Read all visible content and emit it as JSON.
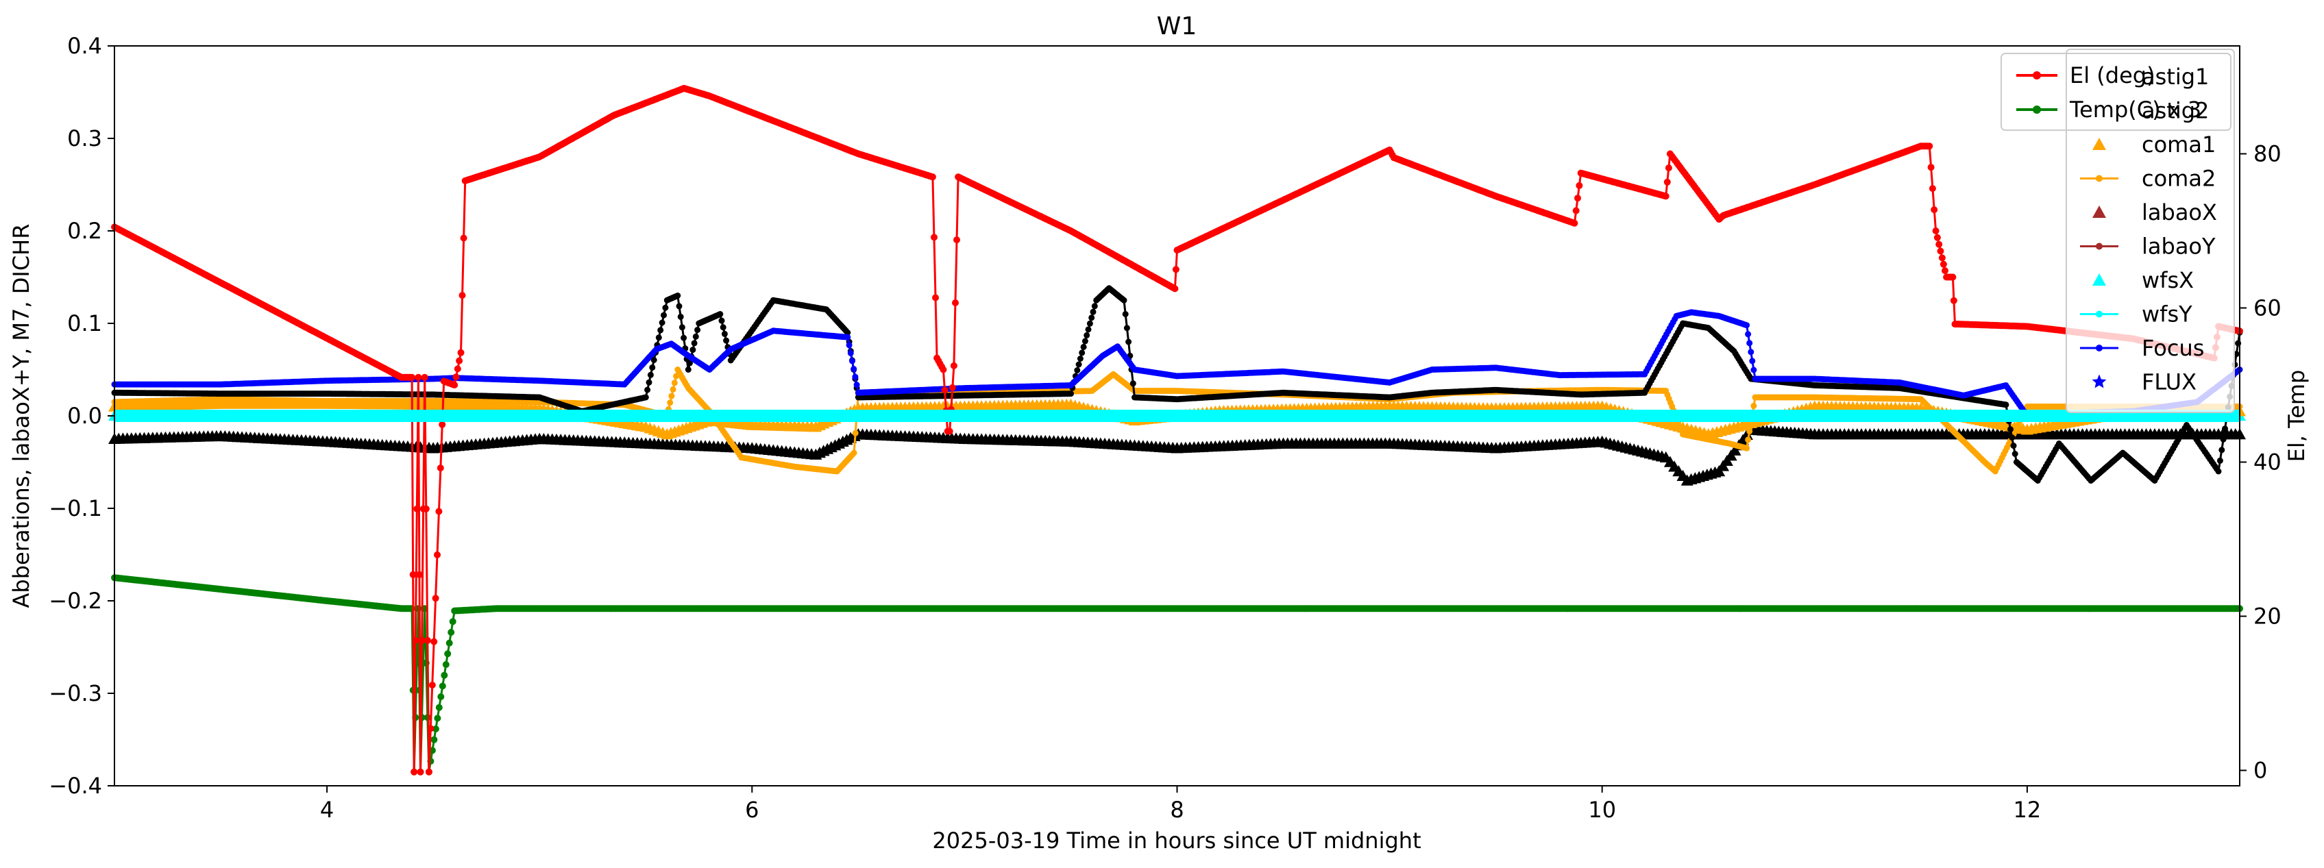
{
  "chart_data": {
    "type": "line",
    "title": "W1",
    "xlabel": "2025-03-19  Time in hours since UT midnight",
    "ylabel_left": "Abberations, labaoX+Y, M7, DICHR",
    "ylabel_right": "El, Temp",
    "xlim": [
      3.0,
      13.0
    ],
    "ylim_left": [
      -0.4,
      0.4
    ],
    "ylim_right": [
      -2,
      94
    ],
    "xticks": [
      4,
      6,
      8,
      10,
      12
    ],
    "xtick_labels": [
      "4",
      "6",
      "8",
      "10",
      "12"
    ],
    "yticks_left": [
      -0.4,
      -0.3,
      -0.2,
      -0.1,
      0.0,
      0.1,
      0.2,
      0.3,
      0.4
    ],
    "ytick_labels_left": [
      "−0.4",
      "−0.3",
      "−0.2",
      "−0.1",
      "0.0",
      "0.1",
      "0.2",
      "0.3",
      "0.4"
    ],
    "yticks_right": [
      0,
      20,
      40,
      60,
      80
    ],
    "ytick_labels_right": [
      "0",
      "20",
      "40",
      "60",
      "80"
    ],
    "grid": false,
    "legends": [
      {
        "placement": "top-right",
        "entries": [
          {
            "label": "astig1",
            "marker": "none",
            "color": "#000000"
          },
          {
            "label": "astig2",
            "marker": "none",
            "color": "#000000"
          },
          {
            "label": "coma1",
            "marker": "triangle",
            "color": "#ffa500"
          },
          {
            "label": "coma2",
            "marker": "line-dot",
            "color": "#ffa500"
          },
          {
            "label": "labaoX",
            "marker": "triangle",
            "color": "#a52a2a"
          },
          {
            "label": "labaoY",
            "marker": "line-dot",
            "color": "#a52a2a"
          },
          {
            "label": "wfsX",
            "marker": "triangle",
            "color": "#00ffff"
          },
          {
            "label": "wfsY",
            "marker": "line-dot",
            "color": "#00ffff"
          },
          {
            "label": "Focus",
            "marker": "line-dot",
            "color": "#0000ff"
          },
          {
            "label": "FLUX",
            "marker": "star",
            "color": "#0000ff"
          }
        ]
      },
      {
        "placement": "top-right",
        "entries": [
          {
            "label": "El (deg)",
            "marker": "line-dot",
            "color": "#ff0000"
          },
          {
            "label": "Temp(C) x 3",
            "marker": "line-dot",
            "color": "#008000"
          }
        ]
      }
    ],
    "series": [
      {
        "name": "El (deg)",
        "axis": "right",
        "color": "#ff0000",
        "style": "line-dot",
        "x": [
          3.0,
          4.35,
          4.4,
          4.41,
          4.43,
          4.44,
          4.46,
          4.48,
          4.55,
          4.6,
          4.63,
          4.65,
          5.0,
          5.35,
          5.68,
          5.8,
          6.5,
          6.85,
          6.87,
          6.9,
          6.92,
          6.93,
          6.95,
          6.97,
          7.5,
          7.99,
          8.0,
          8.5,
          9.0,
          9.02,
          9.5,
          9.87,
          9.9,
          10.3,
          10.32,
          10.55,
          10.57,
          11.0,
          11.5,
          11.54,
          11.57,
          11.6,
          11.62,
          11.65,
          11.66,
          11.68,
          12.0,
          12.5,
          12.88,
          12.9,
          13.0
        ],
        "y": [
          70.5,
          51.0,
          51.0,
          -0.2,
          51.0,
          -0.2,
          51.0,
          -0.2,
          50.5,
          50.0,
          54.2,
          76.5,
          79.6,
          85.0,
          88.5,
          87.5,
          80.0,
          77.0,
          53.5,
          52.0,
          44.0,
          44.0,
          52.5,
          77.0,
          70.0,
          62.5,
          67.5,
          74.0,
          80.5,
          79.5,
          74.5,
          71.0,
          77.5,
          74.5,
          80.0,
          71.5,
          72.0,
          76.0,
          81.0,
          81.0,
          70.0,
          66.5,
          64.0,
          64.0,
          57.9,
          57.9,
          57.6,
          56.0,
          53.5,
          57.6,
          57.0
        ]
      },
      {
        "name": "Temp(C) x 3",
        "axis": "right",
        "color": "#008000",
        "style": "line-dot",
        "x": [
          3.0,
          3.5,
          4.0,
          4.35,
          4.4,
          4.41,
          4.43,
          4.44,
          4.46,
          4.48,
          4.6,
          4.8,
          5.0,
          6.0,
          8.0,
          10.0,
          12.0,
          13.0
        ],
        "y": [
          25.0,
          23.5,
          22.0,
          21.0,
          21.0,
          -0.2,
          21.0,
          -0.2,
          21.0,
          -0.2,
          20.7,
          21.0,
          21.0,
          21.0,
          21.0,
          21.0,
          21.0,
          21.0
        ]
      },
      {
        "name": "Focus",
        "axis": "left",
        "color": "#0000ff",
        "style": "line-dot",
        "x": [
          3.0,
          3.5,
          4.0,
          4.5,
          4.6,
          5.0,
          5.4,
          5.55,
          5.62,
          5.7,
          5.8,
          5.9,
          6.1,
          6.3,
          6.45,
          6.5,
          7.0,
          7.5,
          7.65,
          7.72,
          7.8,
          8.0,
          8.5,
          9.0,
          9.2,
          9.5,
          9.8,
          10.2,
          10.35,
          10.42,
          10.55,
          10.68,
          10.72,
          11.0,
          11.4,
          11.7,
          11.9,
          12.0,
          12.2,
          12.5,
          12.8,
          13.0
        ],
        "y": [
          0.034,
          0.034,
          0.038,
          0.04,
          0.041,
          0.038,
          0.034,
          0.072,
          0.078,
          0.065,
          0.05,
          0.072,
          0.092,
          0.088,
          0.085,
          0.025,
          0.03,
          0.033,
          0.065,
          0.075,
          0.05,
          0.043,
          0.048,
          0.036,
          0.05,
          0.052,
          0.044,
          0.045,
          0.108,
          0.112,
          0.108,
          0.098,
          0.04,
          0.04,
          0.036,
          0.022,
          0.033,
          0.0,
          0.003,
          0.005,
          0.015,
          0.05
        ]
      },
      {
        "name": "coma2",
        "axis": "left",
        "color": "#ffa500",
        "style": "line-dot",
        "x": [
          3.0,
          3.5,
          4.0,
          4.5,
          5.0,
          5.4,
          5.6,
          5.65,
          5.7,
          5.8,
          5.95,
          6.2,
          6.4,
          6.48,
          6.5,
          7.0,
          7.6,
          7.7,
          7.8,
          8.0,
          8.5,
          9.0,
          9.3,
          9.7,
          10.0,
          10.3,
          10.38,
          10.6,
          10.68,
          10.72,
          11.0,
          11.5,
          11.8,
          11.85,
          12.0,
          12.5,
          13.0
        ],
        "y": [
          0.015,
          0.018,
          0.016,
          0.016,
          0.015,
          0.012,
          0.0,
          0.05,
          0.03,
          0.005,
          -0.045,
          -0.055,
          -0.06,
          -0.04,
          0.024,
          0.024,
          0.027,
          0.045,
          0.027,
          0.027,
          0.023,
          0.018,
          0.025,
          0.027,
          0.028,
          0.027,
          -0.02,
          -0.03,
          -0.035,
          0.02,
          0.02,
          0.018,
          -0.05,
          -0.06,
          0.01,
          0.01,
          0.01
        ]
      },
      {
        "name": "coma1",
        "axis": "left",
        "color": "#ffa500",
        "style": "triangle",
        "x": [
          3.0,
          3.5,
          4.0,
          4.5,
          5.0,
          5.5,
          5.6,
          5.8,
          6.0,
          6.3,
          6.5,
          7.0,
          7.5,
          7.8,
          8.2,
          9.0,
          9.5,
          10.0,
          10.5,
          11.0,
          11.5,
          12.0,
          12.5,
          13.0
        ],
        "y": [
          0.01,
          0.013,
          0.013,
          0.012,
          0.008,
          -0.012,
          -0.02,
          -0.005,
          -0.01,
          -0.012,
          0.008,
          0.01,
          0.012,
          -0.005,
          0.005,
          0.01,
          0.008,
          0.01,
          -0.02,
          0.01,
          0.008,
          -0.015,
          0.005,
          0.005
        ]
      },
      {
        "name": "astig1",
        "axis": "left",
        "color": "#000000",
        "style": "line-dot",
        "x": [
          3.0,
          3.5,
          4.0,
          4.5,
          5.0,
          5.2,
          5.5,
          5.6,
          5.65,
          5.7,
          5.75,
          5.85,
          5.9,
          6.1,
          6.35,
          6.45,
          6.5,
          7.0,
          7.5,
          7.62,
          7.68,
          7.75,
          7.8,
          8.0,
          8.5,
          9.0,
          9.2,
          9.5,
          9.9,
          10.2,
          10.38,
          10.5,
          10.62,
          10.7,
          11.0,
          11.4,
          11.9,
          11.95,
          12.05,
          12.15,
          12.3,
          12.45,
          12.6,
          12.75,
          12.9,
          13.0
        ],
        "y": [
          0.025,
          0.024,
          0.024,
          0.023,
          0.02,
          0.005,
          0.02,
          0.125,
          0.13,
          0.05,
          0.1,
          0.11,
          0.06,
          0.125,
          0.115,
          0.09,
          0.02,
          0.022,
          0.024,
          0.125,
          0.138,
          0.125,
          0.02,
          0.018,
          0.025,
          0.02,
          0.025,
          0.028,
          0.023,
          0.025,
          0.1,
          0.095,
          0.07,
          0.04,
          0.033,
          0.03,
          0.012,
          -0.05,
          -0.07,
          -0.03,
          -0.07,
          -0.04,
          -0.07,
          -0.01,
          -0.06,
          0.09
        ]
      },
      {
        "name": "astig2",
        "axis": "left",
        "color": "#000000",
        "style": "triangle",
        "x": [
          3.0,
          3.5,
          4.0,
          4.5,
          5.0,
          5.5,
          6.0,
          6.3,
          6.5,
          7.0,
          7.5,
          8.0,
          8.5,
          9.0,
          9.5,
          10.0,
          10.3,
          10.4,
          10.55,
          10.7,
          11.0,
          11.5,
          12.0,
          12.5,
          13.0
        ],
        "y": [
          -0.025,
          -0.022,
          -0.028,
          -0.035,
          -0.025,
          -0.03,
          -0.035,
          -0.042,
          -0.02,
          -0.025,
          -0.028,
          -0.035,
          -0.03,
          -0.03,
          -0.035,
          -0.028,
          -0.045,
          -0.07,
          -0.06,
          -0.015,
          -0.02,
          -0.02,
          -0.02,
          -0.02,
          -0.02
        ]
      },
      {
        "name": "wfsX",
        "axis": "left",
        "color": "#00ffff",
        "style": "triangle",
        "x": [
          3.0,
          13.0
        ],
        "y": [
          0.0,
          0.0
        ]
      },
      {
        "name": "wfsY",
        "axis": "left",
        "color": "#00ffff",
        "style": "line-dot",
        "x": [
          3.0,
          13.0
        ],
        "y": [
          0.0,
          0.0
        ]
      }
    ]
  }
}
